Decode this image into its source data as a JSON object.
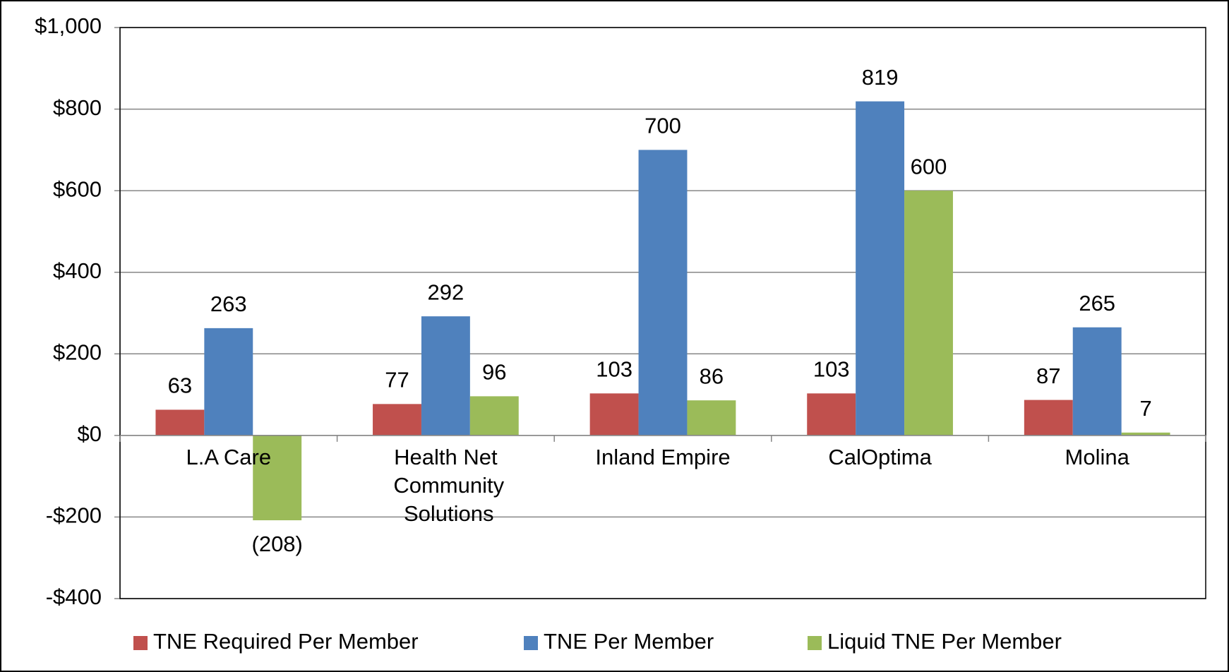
{
  "chart_data": {
    "type": "bar",
    "categories": [
      "L.A Care",
      "Health Net Community Solutions",
      "Inland Empire",
      "CalOptima",
      "Molina"
    ],
    "series": [
      {
        "name": "TNE Required Per Member",
        "color": "#c0504d",
        "values": [
          63,
          77,
          103,
          103,
          87
        ]
      },
      {
        "name": "TNE Per Member",
        "color": "#4f81bd",
        "values": [
          263,
          292,
          700,
          819,
          265
        ]
      },
      {
        "name": "Liquid TNE Per Member",
        "color": "#9bbb59",
        "values": [
          -208,
          96,
          86,
          600,
          7
        ],
        "value_labels": [
          "(208)",
          "96",
          "86",
          "600",
          "7"
        ]
      }
    ],
    "ylim": [
      -400,
      1000
    ],
    "yticks": [
      {
        "value": -400,
        "label": "-$400"
      },
      {
        "value": -200,
        "label": "-$200"
      },
      {
        "value": 0,
        "label": "$0"
      },
      {
        "value": 200,
        "label": "$200"
      },
      {
        "value": 400,
        "label": "$400"
      },
      {
        "value": 600,
        "label": "$600"
      },
      {
        "value": 800,
        "label": "$800"
      },
      {
        "value": 1000,
        "label": "$1,000"
      }
    ],
    "grid": true,
    "legend": "bottom"
  }
}
